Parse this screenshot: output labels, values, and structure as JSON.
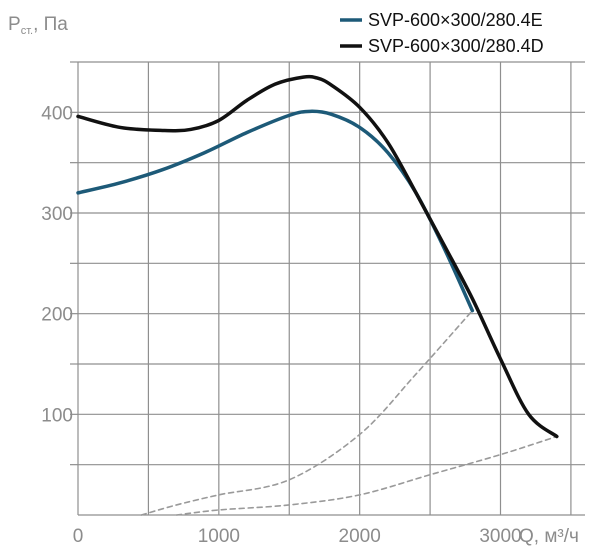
{
  "chart_data": {
    "type": "line",
    "ylabel_main": "P",
    "ylabel_sub": "ст.",
    "ylabel_unit": ", Па",
    "xlabel": "Q, м³/ч",
    "xlim": [
      0,
      3600
    ],
    "ylim": [
      0,
      450
    ],
    "x_ticks": [
      {
        "value": 0,
        "label": "0"
      },
      {
        "value": 1000,
        "label": "1000"
      },
      {
        "value": 2000,
        "label": "2000"
      },
      {
        "value": 3000,
        "label": "3000"
      }
    ],
    "y_ticks": [
      {
        "value": 100,
        "label": "100"
      },
      {
        "value": 200,
        "label": "200"
      },
      {
        "value": 300,
        "label": "300"
      },
      {
        "value": 400,
        "label": "400"
      }
    ],
    "grid": true,
    "legend_position": "top-right",
    "series": [
      {
        "name": "SVP-600×300/280.4E",
        "color": "#1d5a78",
        "style": "solid",
        "x": [
          0,
          300,
          600,
          900,
          1200,
          1500,
          1650,
          1800,
          2000,
          2200,
          2400,
          2600,
          2800
        ],
        "y": [
          320,
          330,
          343,
          360,
          380,
          397,
          401,
          398,
          385,
          360,
          320,
          265,
          203
        ]
      },
      {
        "name": "SVP-600×300/280.4D",
        "color": "#111111",
        "style": "solid",
        "x": [
          0,
          300,
          600,
          800,
          1000,
          1200,
          1400,
          1600,
          1700,
          1800,
          2000,
          2200,
          2400,
          2600,
          2800,
          3000,
          3200,
          3400
        ],
        "y": [
          396,
          385,
          382,
          383,
          392,
          412,
          428,
          435,
          434,
          427,
          405,
          370,
          320,
          268,
          215,
          155,
          100,
          78
        ]
      },
      {
        "color": "#9a9a9a",
        "style": "dashed",
        "x": [
          450,
          700,
          1000,
          1500,
          2000,
          2400,
          2800
        ],
        "y": [
          0,
          10,
          20,
          35,
          80,
          140,
          203
        ]
      },
      {
        "color": "#9a9a9a",
        "style": "dashed",
        "x": [
          700,
          1000,
          1500,
          2000,
          2500,
          3000,
          3400
        ],
        "y": [
          0,
          5,
          10,
          20,
          40,
          60,
          78
        ]
      }
    ]
  }
}
